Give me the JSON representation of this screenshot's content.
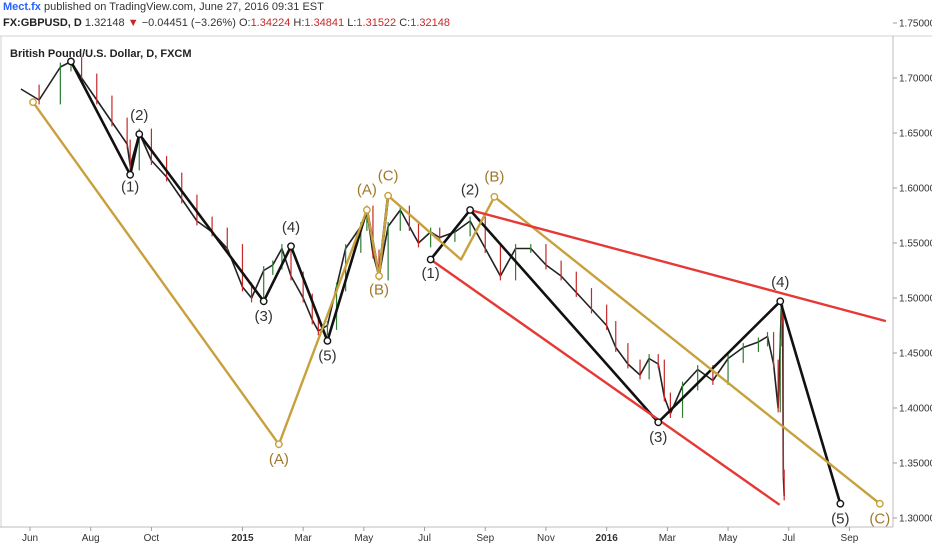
{
  "header": {
    "publisher": "Mect.fx",
    "published_text": "published on TradingView.com, June 27, 2016 09:31 EST",
    "symbol": "FX:GBPUSD, D",
    "last": "1.32148",
    "arrow": "▼",
    "change": "−0.04451 (−3.26%)",
    "o_label": "O:",
    "o_value": "1.34224",
    "h_label": "H:",
    "h_value": "1.34841",
    "l_label": "L:",
    "l_value": "1.31522",
    "c_label": "C:",
    "c_value": "1.32148"
  },
  "colors": {
    "up": "#2e7d32",
    "down": "#c62828",
    "black_wave": "#111111",
    "gold_wave": "#c8a03c",
    "channel_red": "#e53935",
    "price_line": "#222222"
  },
  "chart_data": {
    "type": "line",
    "title": "British Pound/U.S. Dollar, D, FXCM",
    "ylim": [
      1.265,
      1.785
    ],
    "y_ticks": [
      "1.75000",
      "1.70000",
      "1.65000",
      "1.60000",
      "1.55000",
      "1.50000",
      "1.45000",
      "1.40000",
      "1.35000",
      "1.30000"
    ],
    "x_ticks": [
      {
        "label": "Jun",
        "x": 0,
        "bold": false
      },
      {
        "label": "Aug",
        "x": 2,
        "bold": false
      },
      {
        "label": "Oct",
        "x": 4,
        "bold": false
      },
      {
        "label": "2015",
        "x": 7,
        "bold": true
      },
      {
        "label": "Mar",
        "x": 9,
        "bold": false
      },
      {
        "label": "May",
        "x": 11,
        "bold": false
      },
      {
        "label": "Jul",
        "x": 13,
        "bold": false
      },
      {
        "label": "Sep",
        "x": 15,
        "bold": false
      },
      {
        "label": "Nov",
        "x": 17,
        "bold": false
      },
      {
        "label": "2016",
        "x": 19,
        "bold": true
      },
      {
        "label": "Mar",
        "x": 21,
        "bold": false
      },
      {
        "label": "May",
        "x": 23,
        "bold": false
      },
      {
        "label": "Jul",
        "x": 25,
        "bold": false
      },
      {
        "label": "Sep",
        "x": 27,
        "bold": false
      }
    ],
    "price_series": {
      "x": [
        -0.3,
        0.3,
        1.0,
        1.35,
        1.7,
        2.2,
        2.7,
        3.2,
        3.3,
        3.6,
        4.0,
        4.5,
        5.0,
        5.5,
        6.0,
        6.5,
        7.0,
        7.3,
        7.7,
        8.0,
        8.3,
        8.6,
        9.0,
        9.3,
        9.5,
        9.8,
        10.1,
        10.4,
        10.9,
        11.1,
        11.3,
        11.5,
        11.8,
        12.2,
        12.5,
        12.8,
        13.2,
        13.5,
        14.0,
        14.5,
        15.0,
        15.5,
        16.0,
        16.5,
        17.0,
        17.5,
        18.0,
        18.5,
        19.0,
        19.3,
        19.7,
        20.1,
        20.4,
        20.7,
        20.9,
        21.1,
        21.5,
        22.0,
        22.5,
        23.0,
        23.5,
        24.0,
        24.3,
        24.5,
        24.65,
        24.72,
        24.75,
        24.8,
        24.82,
        24.85
      ],
      "y": [
        1.69,
        1.68,
        1.71,
        1.715,
        1.7,
        1.68,
        1.66,
        1.64,
        1.62,
        1.65,
        1.625,
        1.61,
        1.59,
        1.57,
        1.56,
        1.545,
        1.51,
        1.5,
        1.525,
        1.53,
        1.545,
        1.52,
        1.5,
        1.48,
        1.47,
        1.475,
        1.51,
        1.545,
        1.565,
        1.58,
        1.54,
        1.52,
        1.565,
        1.58,
        1.565,
        1.55,
        1.56,
        1.555,
        1.56,
        1.57,
        1.545,
        1.52,
        1.545,
        1.545,
        1.53,
        1.52,
        1.505,
        1.49,
        1.475,
        1.455,
        1.44,
        1.43,
        1.445,
        1.44,
        1.41,
        1.395,
        1.42,
        1.435,
        1.425,
        1.445,
        1.455,
        1.46,
        1.465,
        1.44,
        1.4,
        1.46,
        1.49,
        1.48,
        1.34,
        1.32
      ]
    },
    "wave_lines": [
      {
        "name": "black-impulse-1",
        "color": "black",
        "points": [
          [
            1.35,
            1.715
          ],
          [
            3.3,
            1.612
          ],
          [
            3.6,
            1.649
          ],
          [
            7.7,
            1.497
          ],
          [
            8.6,
            1.547
          ],
          [
            9.8,
            1.461
          ],
          [
            11.1,
            1.58
          ],
          [
            11.5,
            1.52
          ],
          [
            11.8,
            1.593
          ]
        ]
      },
      {
        "name": "black-impulse-2",
        "color": "black",
        "points": [
          [
            13.2,
            1.535
          ],
          [
            14.5,
            1.58
          ],
          [
            20.7,
            1.387
          ],
          [
            24.72,
            1.497
          ],
          [
            26.7,
            1.313
          ]
        ]
      },
      {
        "name": "gold-abc",
        "color": "gold",
        "points": [
          [
            0.1,
            1.678
          ],
          [
            8.2,
            1.367
          ],
          [
            11.1,
            1.58
          ],
          [
            11.5,
            1.52
          ],
          [
            11.8,
            1.593
          ],
          [
            14.2,
            1.535
          ],
          [
            15.3,
            1.592
          ],
          [
            28.0,
            1.313
          ]
        ]
      },
      {
        "name": "red-channel-top",
        "color": "red",
        "points": [
          [
            14.5,
            1.58
          ],
          [
            28.2,
            1.479
          ]
        ]
      },
      {
        "name": "red-channel-bottom",
        "color": "red",
        "points": [
          [
            13.2,
            1.535
          ],
          [
            24.7,
            1.312
          ]
        ]
      }
    ],
    "wave_pivots": [
      {
        "x": 1.35,
        "y": 1.715,
        "color": "black"
      },
      {
        "x": 3.3,
        "y": 1.612,
        "color": "black"
      },
      {
        "x": 3.6,
        "y": 1.649,
        "color": "black"
      },
      {
        "x": 7.7,
        "y": 1.497,
        "color": "black"
      },
      {
        "x": 8.6,
        "y": 1.547,
        "color": "black"
      },
      {
        "x": 9.8,
        "y": 1.461,
        "color": "black"
      },
      {
        "x": 11.1,
        "y": 1.58,
        "color": "gold"
      },
      {
        "x": 11.5,
        "y": 1.52,
        "color": "gold"
      },
      {
        "x": 11.8,
        "y": 1.593,
        "color": "gold"
      },
      {
        "x": 13.2,
        "y": 1.535,
        "color": "black"
      },
      {
        "x": 14.5,
        "y": 1.58,
        "color": "black"
      },
      {
        "x": 15.3,
        "y": 1.592,
        "color": "gold"
      },
      {
        "x": 20.7,
        "y": 1.387,
        "color": "black"
      },
      {
        "x": 24.72,
        "y": 1.497,
        "color": "black"
      },
      {
        "x": 26.7,
        "y": 1.313,
        "color": "black"
      },
      {
        "x": 28.0,
        "y": 1.313,
        "color": "gold"
      },
      {
        "x": 8.2,
        "y": 1.367,
        "color": "gold"
      },
      {
        "x": 0.1,
        "y": 1.678,
        "color": "gold"
      }
    ],
    "wave_labels": [
      {
        "text": "(2)",
        "x": 3.6,
        "y": 1.662,
        "color": "black"
      },
      {
        "text": "(1)",
        "x": 3.3,
        "y": 1.597,
        "color": "black"
      },
      {
        "text": "(4)",
        "x": 8.6,
        "y": 1.56,
        "color": "black"
      },
      {
        "text": "(3)",
        "x": 7.7,
        "y": 1.479,
        "color": "black"
      },
      {
        "text": "(5)",
        "x": 9.8,
        "y": 1.443,
        "color": "black"
      },
      {
        "text": "(A)",
        "x": 11.1,
        "y": 1.594,
        "color": "gold"
      },
      {
        "text": "(B)",
        "x": 11.5,
        "y": 1.503,
        "color": "gold"
      },
      {
        "text": "(C)",
        "x": 11.8,
        "y": 1.607,
        "color": "gold"
      },
      {
        "text": "(1)",
        "x": 13.2,
        "y": 1.518,
        "color": "black"
      },
      {
        "text": "(2)",
        "x": 14.5,
        "y": 1.594,
        "color": "black"
      },
      {
        "text": "(B)",
        "x": 15.3,
        "y": 1.606,
        "color": "gold"
      },
      {
        "text": "(A)",
        "x": 8.2,
        "y": 1.349,
        "color": "gold"
      },
      {
        "text": "(3)",
        "x": 20.7,
        "y": 1.369,
        "color": "black"
      },
      {
        "text": "(4)",
        "x": 24.72,
        "y": 1.51,
        "color": "black"
      },
      {
        "text": "(5)",
        "x": 26.7,
        "y": 1.295,
        "color": "black"
      },
      {
        "text": "(C)",
        "x": 28.0,
        "y": 1.295,
        "color": "gold"
      }
    ]
  }
}
